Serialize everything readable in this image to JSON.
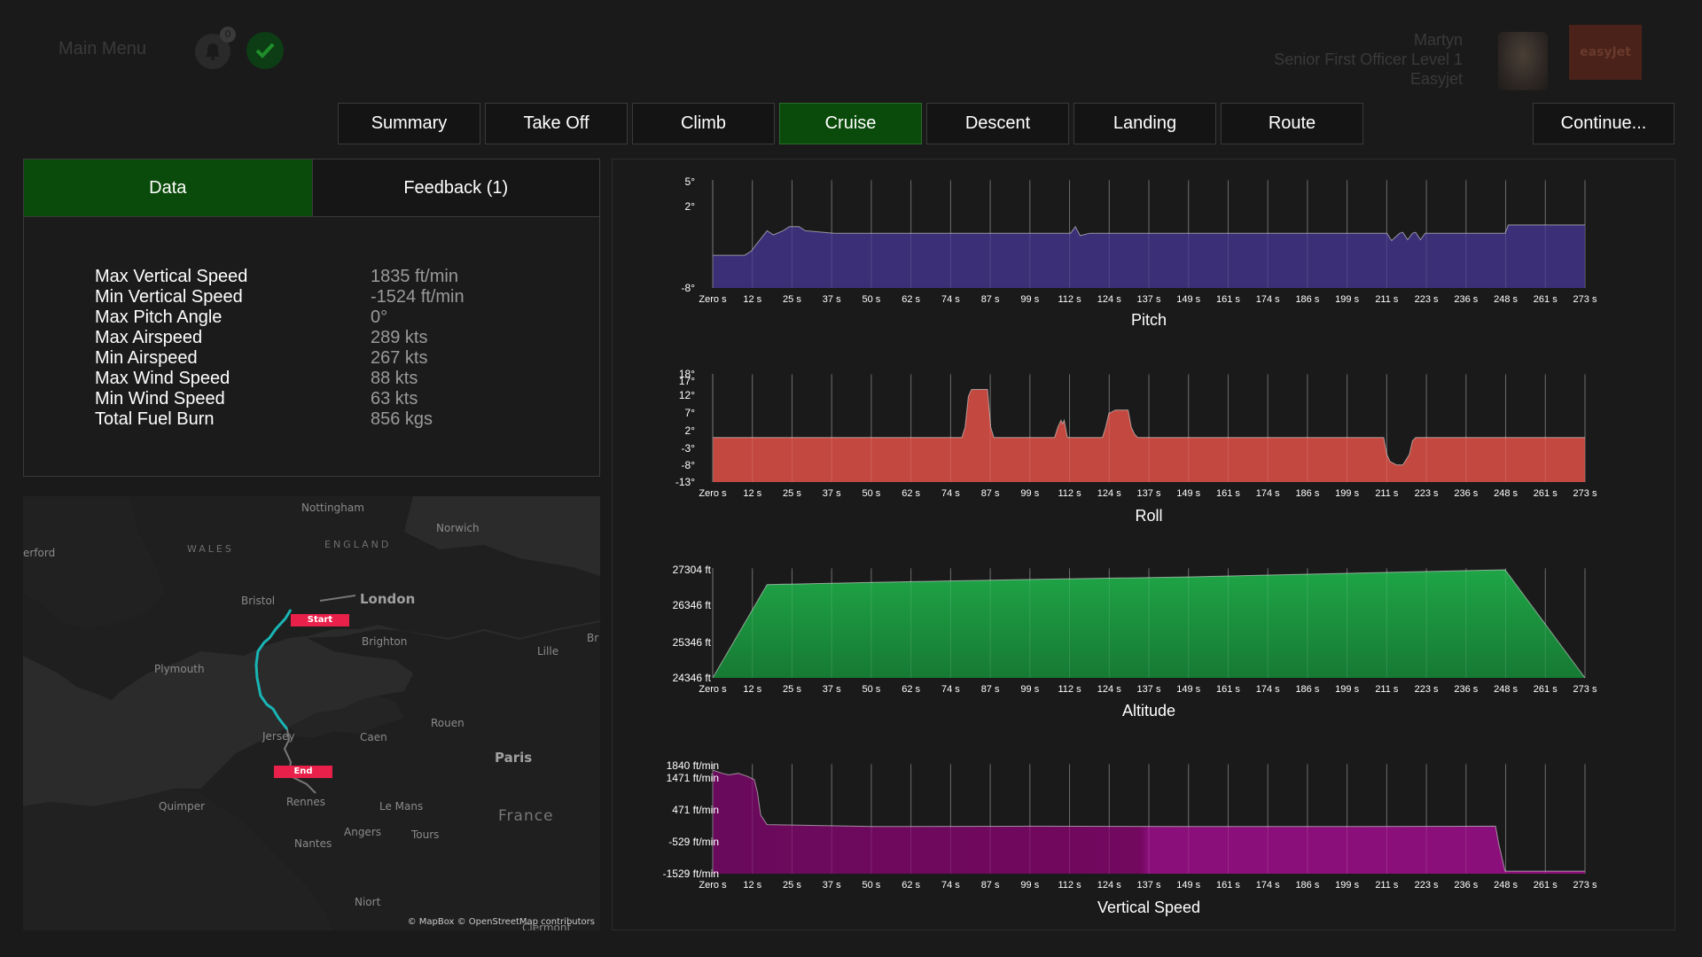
{
  "header": {
    "main_menu": "Main Menu",
    "notification_count": "0",
    "user_name": "Martyn",
    "user_role": "Senior First Officer Level 1",
    "user_company": "Easyjet",
    "logo_text": "easyJet"
  },
  "tabs": [
    {
      "label": "Summary",
      "active": false
    },
    {
      "label": "Take Off",
      "active": false
    },
    {
      "label": "Climb",
      "active": false
    },
    {
      "label": "Cruise",
      "active": true
    },
    {
      "label": "Descent",
      "active": false
    },
    {
      "label": "Landing",
      "active": false
    },
    {
      "label": "Route",
      "active": false
    }
  ],
  "continue_label": "Continue...",
  "subtabs": {
    "data": "Data",
    "feedback": "Feedback (1)"
  },
  "stats": [
    {
      "label": "Max Vertical Speed",
      "value": "1835 ft/min"
    },
    {
      "label": "Min Vertical Speed",
      "value": "-1524 ft/min"
    },
    {
      "label": "Max Pitch Angle",
      "value": "0°"
    },
    {
      "label": "Max Airspeed",
      "value": "289 kts"
    },
    {
      "label": "Min Airspeed",
      "value": "267 kts"
    },
    {
      "label": "Max Wind Speed",
      "value": "88 kts"
    },
    {
      "label": "Min Wind Speed",
      "value": "63 kts"
    },
    {
      "label": "Total Fuel Burn",
      "value": "856 kgs"
    }
  ],
  "map": {
    "labels": [
      "Nottingham",
      "Norwich",
      "WALES",
      "ENGLAND",
      "erford",
      "Bristol",
      "London",
      "Brighton",
      "Plymouth",
      "Lille",
      "Br",
      "Rouen",
      "Jersey",
      "Caen",
      "Paris",
      "Quimper",
      "Rennes",
      "Le Mans",
      "France",
      "Angers",
      "Tours",
      "Nantes",
      "Niort",
      "Clermont"
    ],
    "start_label": "Start",
    "end_label": "End",
    "attribution": "© MapBox © OpenStreetMap contributors",
    "route_color": "#19b5b5",
    "marker_color": "#e8204a"
  },
  "chart_data": [
    {
      "type": "area",
      "title": "Pitch",
      "color": "#3b2f78",
      "x_ticks": [
        "Zero s",
        "12 s",
        "25 s",
        "37 s",
        "50 s",
        "62 s",
        "74 s",
        "87 s",
        "99 s",
        "112 s",
        "124 s",
        "137 s",
        "149 s",
        "161 s",
        "174 s",
        "186 s",
        "199 s",
        "211 s",
        "223 s",
        "236 s",
        "248 s",
        "261 s",
        "273 s"
      ],
      "y_ticks": [
        "5°",
        "2°",
        "-8°"
      ],
      "ylim": [
        -8,
        5
      ],
      "x": [
        0,
        10,
        12,
        14,
        17,
        19,
        22,
        24,
        27,
        29,
        38,
        80,
        112,
        113.5,
        115,
        118,
        200,
        211,
        212.5,
        215,
        216,
        217.5,
        219,
        220,
        221.5,
        223,
        248,
        249,
        273
      ],
      "y": [
        -4,
        -4,
        -3.5,
        -2.5,
        -1,
        -1.5,
        -1,
        -0.5,
        -0.5,
        -1,
        -1.3,
        -1.3,
        -1.3,
        -0.5,
        -1.6,
        -1.3,
        -1.3,
        -1.3,
        -2.2,
        -1.3,
        -1.2,
        -2.1,
        -1.3,
        -1.2,
        -2.1,
        -1.3,
        -1.3,
        -0.3,
        -0.3
      ]
    },
    {
      "type": "area",
      "title": "Roll",
      "color": "#cc4b41",
      "x_ticks": [
        "Zero s",
        "12 s",
        "25 s",
        "37 s",
        "50 s",
        "62 s",
        "74 s",
        "87 s",
        "99 s",
        "112 s",
        "124 s",
        "137 s",
        "149 s",
        "161 s",
        "174 s",
        "186 s",
        "199 s",
        "211 s",
        "223 s",
        "236 s",
        "248 s",
        "261 s",
        "273 s"
      ],
      "y_ticks": [
        "18°",
        "17°",
        "12°",
        "7°",
        "2°",
        "-3°",
        "-8°",
        "-13°"
      ],
      "ylim": [
        -13,
        18
      ],
      "x": [
        0,
        78,
        79,
        80,
        81,
        83,
        85,
        86,
        87,
        88,
        89,
        107,
        108,
        109,
        109.5,
        110,
        111,
        112,
        122,
        123,
        124,
        126,
        128,
        130,
        131,
        132,
        133,
        200,
        210,
        211,
        212,
        214,
        216,
        218,
        219,
        220,
        273
      ],
      "y": [
        0,
        0,
        3,
        12,
        14,
        14,
        14,
        14,
        3,
        0,
        0,
        0,
        3,
        5,
        4,
        5,
        0,
        0,
        0,
        3,
        7,
        8,
        8,
        8,
        3,
        1,
        0,
        0,
        0,
        -5,
        -7,
        -8,
        -8,
        -5,
        -1,
        0,
        0
      ]
    },
    {
      "type": "area",
      "title": "Altitude",
      "color": "#1b8e3c",
      "x_ticks": [
        "Zero s",
        "12 s",
        "25 s",
        "37 s",
        "50 s",
        "62 s",
        "74 s",
        "87 s",
        "99 s",
        "112 s",
        "124 s",
        "137 s",
        "149 s",
        "161 s",
        "174 s",
        "186 s",
        "199 s",
        "211 s",
        "223 s",
        "236 s",
        "248 s",
        "261 s",
        "273 s"
      ],
      "y_ticks": [
        "27304 ft",
        "26346 ft",
        "25346 ft",
        "24346 ft"
      ],
      "ylim": [
        24346,
        27304
      ],
      "x": [
        0,
        17,
        50,
        100,
        150,
        200,
        235,
        248,
        273
      ],
      "y": [
        24346,
        26900,
        26960,
        27040,
        27110,
        27210,
        27280,
        27304,
        24346
      ]
    },
    {
      "type": "area",
      "title": "Vertical Speed",
      "color": "#8a0f7a",
      "x_ticks": [
        "Zero s",
        "12 s",
        "25 s",
        "37 s",
        "50 s",
        "62 s",
        "74 s",
        "87 s",
        "99 s",
        "112 s",
        "124 s",
        "137 s",
        "149 s",
        "161 s",
        "174 s",
        "186 s",
        "199 s",
        "211 s",
        "223 s",
        "236 s",
        "248 s",
        "261 s",
        "273 s"
      ],
      "y_ticks": [
        "1840 ft/min",
        "1471 ft/min",
        "471 ft/min",
        "-529 ft/min",
        "-1529 ft/min"
      ],
      "ylim": [
        -1529,
        1840
      ],
      "x": [
        0,
        3,
        5,
        8,
        11,
        13,
        14,
        15,
        17,
        50,
        100,
        150,
        200,
        245,
        246,
        248,
        273
      ],
      "y": [
        1700,
        1600,
        1550,
        1600,
        1500,
        1400,
        1000,
        300,
        0,
        -60,
        -50,
        -60,
        -60,
        -50,
        -600,
        -1450,
        -1450
      ]
    }
  ]
}
